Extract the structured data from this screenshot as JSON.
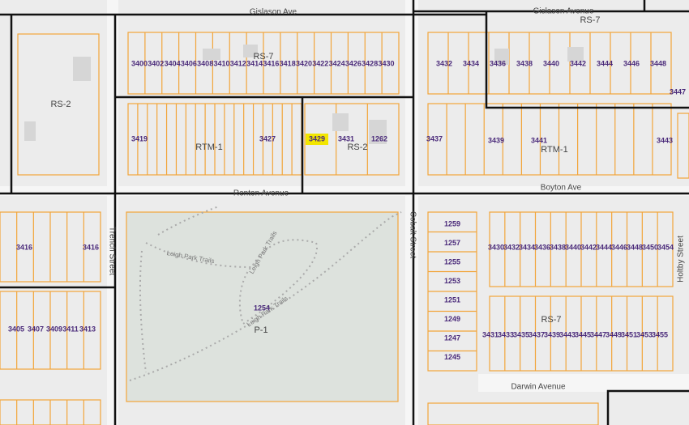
{
  "streets": [
    "Gislason Avenue",
    "Gislason Ave",
    "Renton Avenue",
    "Boyton Ave",
    "Cobalt Street",
    "Trench Street",
    "Holtby Street",
    "Darwin Avenue"
  ],
  "trails": [
    "Leigh Park Trails",
    "Leigh Park Trails",
    "Leigh Park Trails"
  ],
  "zones": [
    "RS-7",
    "RS-7",
    "RS-2",
    "RTM-1",
    "RS-2",
    "RTM-1",
    "RS-7",
    "P-1"
  ],
  "addresses": {
    "top_row": [
      "3400",
      "3402",
      "3404",
      "3406",
      "3408",
      "3410",
      "3412",
      "3414",
      "3416",
      "3418",
      "3420",
      "3422",
      "3424",
      "3426",
      "3428",
      "3430"
    ],
    "mid_row": [
      "3419",
      "3427",
      "3429",
      "3431",
      "1262"
    ],
    "top_right": [
      "3432",
      "3434",
      "3436",
      "3438",
      "3440",
      "3442",
      "3444",
      "3446",
      "3448",
      "3447"
    ],
    "mid_right": [
      "3437",
      "3439",
      "3441",
      "3443"
    ],
    "park": [
      "1254"
    ],
    "cobalt_column": [
      "1259",
      "1257",
      "1255",
      "1253",
      "1251",
      "1249",
      "1247",
      "1245"
    ],
    "holtby_north": [
      "3430",
      "3432",
      "3434",
      "3436",
      "3438",
      "3440",
      "3442",
      "3444",
      "3446",
      "3448",
      "3450",
      "3454"
    ],
    "holtby_south": [
      "3431",
      "3433",
      "3435",
      "3437",
      "3439",
      "3443",
      "3445",
      "3447",
      "3449",
      "3451",
      "3453",
      "3455"
    ],
    "west": [
      "3416",
      "3416",
      "3405",
      "3407",
      "3409",
      "3411",
      "3413"
    ]
  }
}
